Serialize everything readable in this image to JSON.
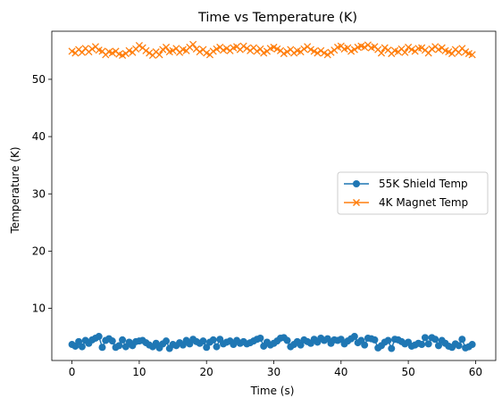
{
  "chart_data": {
    "type": "line",
    "title": "Time vs Temperature (K)",
    "xlabel": "Time (s)",
    "ylabel": "Temperature (K)",
    "xlim": [
      -3.0,
      63.0
    ],
    "ylim": [
      0.9,
      58.4
    ],
    "xticks": [
      0,
      10,
      20,
      30,
      40,
      50,
      60
    ],
    "yticks": [
      10,
      20,
      30,
      40,
      50
    ],
    "grid": false,
    "legend_position": "center-right",
    "x": [
      0.0,
      0.5,
      1.0,
      1.5,
      2.0,
      2.5,
      3.0,
      3.5,
      4.0,
      4.5,
      5.0,
      5.5,
      6.0,
      6.5,
      7.0,
      7.5,
      8.0,
      8.5,
      9.0,
      9.5,
      10.0,
      10.5,
      11.0,
      11.5,
      12.0,
      12.5,
      13.0,
      13.5,
      14.0,
      14.5,
      15.0,
      15.5,
      16.0,
      16.5,
      17.0,
      17.5,
      18.0,
      18.5,
      19.0,
      19.5,
      20.0,
      20.5,
      21.0,
      21.5,
      22.0,
      22.5,
      23.0,
      23.5,
      24.0,
      24.5,
      25.0,
      25.5,
      26.0,
      26.5,
      27.0,
      27.5,
      28.0,
      28.5,
      29.0,
      29.5,
      30.0,
      30.5,
      31.0,
      31.5,
      32.0,
      32.5,
      33.0,
      33.5,
      34.0,
      34.5,
      35.0,
      35.5,
      36.0,
      36.5,
      37.0,
      37.5,
      38.0,
      38.5,
      39.0,
      39.5,
      40.0,
      40.5,
      41.0,
      41.5,
      42.0,
      42.5,
      43.0,
      43.5,
      44.0,
      44.5,
      45.0,
      45.5,
      46.0,
      46.5,
      47.0,
      47.5,
      48.0,
      48.5,
      49.0,
      49.5,
      50.0,
      50.5,
      51.0,
      51.5,
      52.0,
      52.5,
      53.0,
      53.5,
      54.0,
      54.5,
      55.0,
      55.5,
      56.0,
      56.5,
      57.0,
      57.5,
      58.0,
      58.5,
      59.0,
      59.5
    ],
    "series": [
      {
        "name": "55K Shield Temp",
        "color": "#1f77b4",
        "marker": "circle",
        "values": [
          3.7,
          3.4,
          4.2,
          3.3,
          4.4,
          3.9,
          4.5,
          4.8,
          5.1,
          3.2,
          4.4,
          4.7,
          4.3,
          3.2,
          3.5,
          4.5,
          3.3,
          4.1,
          3.5,
          4.2,
          4.3,
          4.4,
          4.0,
          3.6,
          3.3,
          3.9,
          3.1,
          3.8,
          4.3,
          3.0,
          3.7,
          3.5,
          4.0,
          3.6,
          4.4,
          3.8,
          4.6,
          4.2,
          3.9,
          4.3,
          3.2,
          4.1,
          4.5,
          3.3,
          4.6,
          3.8,
          4.1,
          4.3,
          3.7,
          4.4,
          3.9,
          4.2,
          3.8,
          4.0,
          4.3,
          4.6,
          4.8,
          3.4,
          4.1,
          3.6,
          3.9,
          4.3,
          4.8,
          4.9,
          4.4,
          3.3,
          3.7,
          4.2,
          3.6,
          4.5,
          4.2,
          3.9,
          4.6,
          4.1,
          4.8,
          4.4,
          4.7,
          3.9,
          4.5,
          4.4,
          4.6,
          3.8,
          4.3,
          4.7,
          5.1,
          4.0,
          4.4,
          3.6,
          4.8,
          4.7,
          4.5,
          3.1,
          3.5,
          4.1,
          4.4,
          3.0,
          4.6,
          4.5,
          4.2,
          3.8,
          4.1,
          3.4,
          3.6,
          3.9,
          3.7,
          4.9,
          3.8,
          4.9,
          4.6,
          3.5,
          4.4,
          3.9,
          3.4,
          3.2,
          3.8,
          3.5,
          4.6,
          3.1,
          3.3,
          3.7
        ]
      },
      {
        "name": "4K Magnet Temp",
        "color": "#ff7f0e",
        "marker": "x",
        "values": [
          54.9,
          54.6,
          55.2,
          54.7,
          55.4,
          54.8,
          55.3,
          55.7,
          55.1,
          54.9,
          54.3,
          54.8,
          54.6,
          54.9,
          54.4,
          54.2,
          54.5,
          55.0,
          54.7,
          55.3,
          55.9,
          55.5,
          55.0,
          54.6,
          54.2,
          54.8,
          54.3,
          55.2,
          55.6,
          54.8,
          55.0,
          55.4,
          54.7,
          55.2,
          55.0,
          55.6,
          56.1,
          55.3,
          54.8,
          55.2,
          54.6,
          54.3,
          54.9,
          55.3,
          55.6,
          55.1,
          55.4,
          55.0,
          55.5,
          55.7,
          55.2,
          55.8,
          55.4,
          55.0,
          55.5,
          54.9,
          55.3,
          54.6,
          54.9,
          55.4,
          55.6,
          55.3,
          55.0,
          54.5,
          54.8,
          55.2,
          54.6,
          55.0,
          54.8,
          55.3,
          55.7,
          55.2,
          54.9,
          54.6,
          55.0,
          54.6,
          54.3,
          54.7,
          55.1,
          55.6,
          55.8,
          55.3,
          55.5,
          54.9,
          55.2,
          55.6,
          55.8,
          55.6,
          56.0,
          55.5,
          55.7,
          55.2,
          54.6,
          55.5,
          55.1,
          54.5,
          55.0,
          54.8,
          55.3,
          54.7,
          55.6,
          55.2,
          54.9,
          55.4,
          55.5,
          55.1,
          54.6,
          55.3,
          55.7,
          55.2,
          55.5,
          55.0,
          54.8,
          54.5,
          55.2,
          54.7,
          55.4,
          54.8,
          54.5,
          54.3
        ]
      }
    ]
  }
}
